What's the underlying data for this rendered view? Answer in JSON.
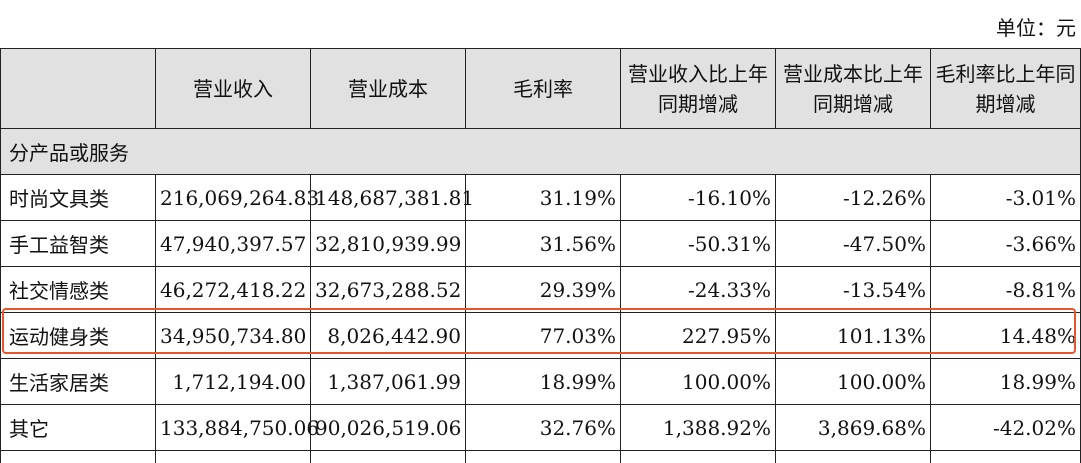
{
  "unit_label": "单位：元",
  "columns": [
    "",
    "营业收入",
    "营业成本",
    "毛利率",
    "营业收入比上年同期增减",
    "营业成本比上年同期增减",
    "毛利率比上年同期增减"
  ],
  "section_label": "分产品或服务",
  "rows": [
    {
      "name": "时尚文具类",
      "revenue": "216,069,264.83",
      "cost": "148,687,381.81",
      "margin": "31.19%",
      "rev_change": "-16.10%",
      "cost_change": "-12.26%",
      "margin_change": "-3.01%"
    },
    {
      "name": "手工益智类",
      "revenue": "47,940,397.57",
      "cost": "32,810,939.99",
      "margin": "31.56%",
      "rev_change": "-50.31%",
      "cost_change": "-47.50%",
      "margin_change": "-3.66%"
    },
    {
      "name": "社交情感类",
      "revenue": "46,272,418.22",
      "cost": "32,673,288.52",
      "margin": "29.39%",
      "rev_change": "-24.33%",
      "cost_change": "-13.54%",
      "margin_change": "-8.81%"
    },
    {
      "name": "运动健身类",
      "revenue": "34,950,734.80",
      "cost": "8,026,442.90",
      "margin": "77.03%",
      "rev_change": "227.95%",
      "cost_change": "101.13%",
      "margin_change": "14.48%",
      "highlighted": true
    },
    {
      "name": "生活家居类",
      "revenue": "1,712,194.00",
      "cost": "1,387,061.99",
      "margin": "18.99%",
      "rev_change": "100.00%",
      "cost_change": "100.00%",
      "margin_change": "18.99%"
    },
    {
      "name": "其它",
      "revenue": "133,884,750.06",
      "cost": "90,026,519.06",
      "margin": "32.76%",
      "rev_change": "1,388.92%",
      "cost_change": "3,869.68%",
      "margin_change": "-42.02%"
    }
  ],
  "colors": {
    "header_bg": "#e1e1e1",
    "highlight_border": "#e8552d"
  }
}
